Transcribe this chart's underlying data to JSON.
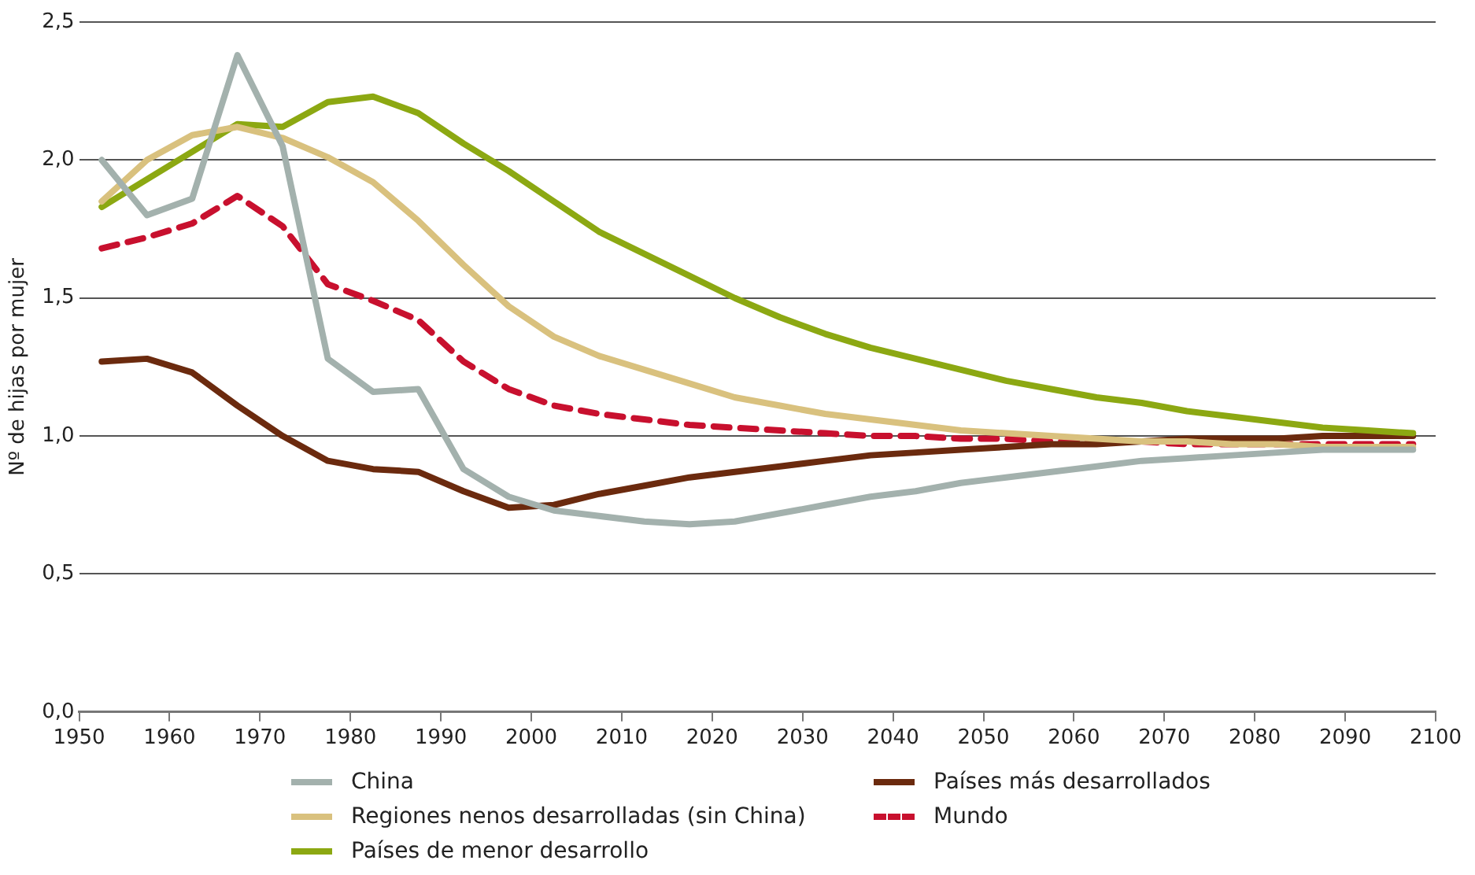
{
  "chart_data": {
    "type": "line",
    "ylabel": "Nº de hijas por mujer",
    "x": [
      1952.5,
      1957.5,
      1962.5,
      1967.5,
      1972.5,
      1977.5,
      1982.5,
      1987.5,
      1992.5,
      1997.5,
      2002.5,
      2007.5,
      2012.5,
      2017.5,
      2022.5,
      2027.5,
      2032.5,
      2037.5,
      2042.5,
      2047.5,
      2052.5,
      2057.5,
      2062.5,
      2067.5,
      2072.5,
      2077.5,
      2082.5,
      2087.5,
      2092.5,
      2097.5
    ],
    "xlim": [
      1950,
      2100
    ],
    "xticks": [
      1950,
      1960,
      1970,
      1980,
      1990,
      2000,
      2010,
      2020,
      2030,
      2040,
      2050,
      2060,
      2070,
      2080,
      2090,
      2100
    ],
    "ylim": [
      0,
      2.5
    ],
    "yticks": [
      {
        "value": 0,
        "label": "0,0"
      },
      {
        "value": 0.5,
        "label": "0,5"
      },
      {
        "value": 1,
        "label": "1,0"
      },
      {
        "value": 1.5,
        "label": "1,5"
      },
      {
        "value": 2,
        "label": "2,0"
      },
      {
        "value": 2.5,
        "label": "2,5"
      }
    ],
    "grid": "y",
    "legend": "bottom",
    "marker": "none",
    "series": [
      {
        "name": "China",
        "color": "#a3b1ad",
        "line_style": "solid",
        "values": [
          2.0,
          1.8,
          1.86,
          2.38,
          2.05,
          1.28,
          1.16,
          1.17,
          0.88,
          0.78,
          0.73,
          0.71,
          0.69,
          0.68,
          0.69,
          0.72,
          0.75,
          0.78,
          0.8,
          0.83,
          0.85,
          0.87,
          0.89,
          0.91,
          0.92,
          0.93,
          0.94,
          0.95,
          0.95,
          0.95
        ]
      },
      {
        "name": "Regiones nenos desarrolladas (sin China)",
        "color": "#d9c17e",
        "line_style": "solid",
        "values": [
          1.85,
          2.0,
          2.09,
          2.12,
          2.08,
          2.01,
          1.92,
          1.78,
          1.62,
          1.47,
          1.36,
          1.29,
          1.24,
          1.19,
          1.14,
          1.11,
          1.08,
          1.06,
          1.04,
          1.02,
          1.01,
          1.0,
          0.99,
          0.98,
          0.98,
          0.97,
          0.97,
          0.96,
          0.96,
          0.96
        ]
      },
      {
        "name": "Países de menor desarrollo",
        "color": "#8ca812",
        "line_style": "solid",
        "values": [
          1.83,
          1.93,
          2.03,
          2.13,
          2.12,
          2.21,
          2.23,
          2.17,
          2.06,
          1.96,
          1.85,
          1.74,
          1.66,
          1.58,
          1.5,
          1.43,
          1.37,
          1.32,
          1.28,
          1.24,
          1.2,
          1.17,
          1.14,
          1.12,
          1.09,
          1.07,
          1.05,
          1.03,
          1.02,
          1.01
        ]
      },
      {
        "name": "Países más desarrollados",
        "color": "#6b2a0e",
        "line_style": "solid",
        "values": [
          1.27,
          1.28,
          1.23,
          1.11,
          1.0,
          0.91,
          0.88,
          0.87,
          0.8,
          0.74,
          0.75,
          0.79,
          0.82,
          0.85,
          0.87,
          0.89,
          0.91,
          0.93,
          0.94,
          0.95,
          0.96,
          0.97,
          0.97,
          0.98,
          0.99,
          0.99,
          0.99,
          1.0,
          1.0,
          1.0
        ]
      },
      {
        "name": "Mundo",
        "color": "#c8102e",
        "line_style": "dashed",
        "values": [
          1.68,
          1.72,
          1.77,
          1.87,
          1.76,
          1.55,
          1.49,
          1.42,
          1.27,
          1.17,
          1.11,
          1.08,
          1.06,
          1.04,
          1.03,
          1.02,
          1.01,
          1.0,
          1.0,
          0.99,
          0.99,
          0.98,
          0.98,
          0.98,
          0.97,
          0.97,
          0.97,
          0.97,
          0.97,
          0.97
        ]
      }
    ]
  }
}
